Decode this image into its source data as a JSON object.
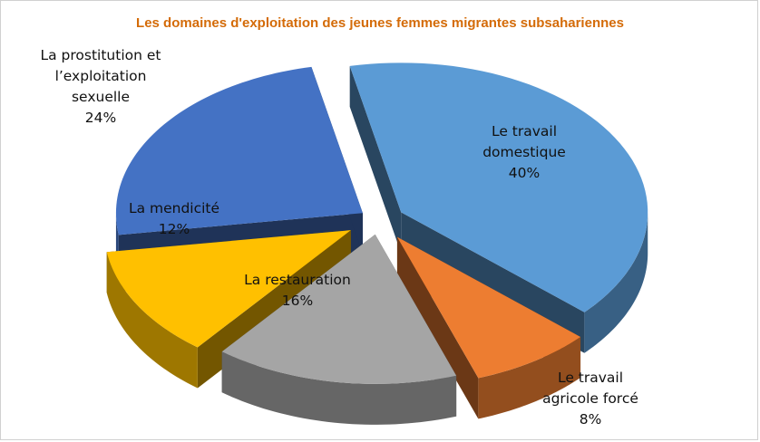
{
  "chart_data": {
    "type": "pie",
    "title": "Les domaines d'exploitation des jeunes femmes migrantes subsahariennes",
    "categories": [
      "Le travail domestique",
      "Le travail agricole forcé",
      "La restauration",
      "La mendicité",
      "La prostitution et l’exploitation sexuelle"
    ],
    "values": [
      40,
      8,
      16,
      12,
      24
    ],
    "value_labels": [
      "40%",
      "8%",
      "16%",
      "12%",
      "24%"
    ],
    "colors": [
      "#5b9bd5",
      "#ed7d31",
      "#a5a5a5",
      "#ffc000",
      "#4472c4"
    ],
    "style": "3d-exploded",
    "legend": "none"
  }
}
